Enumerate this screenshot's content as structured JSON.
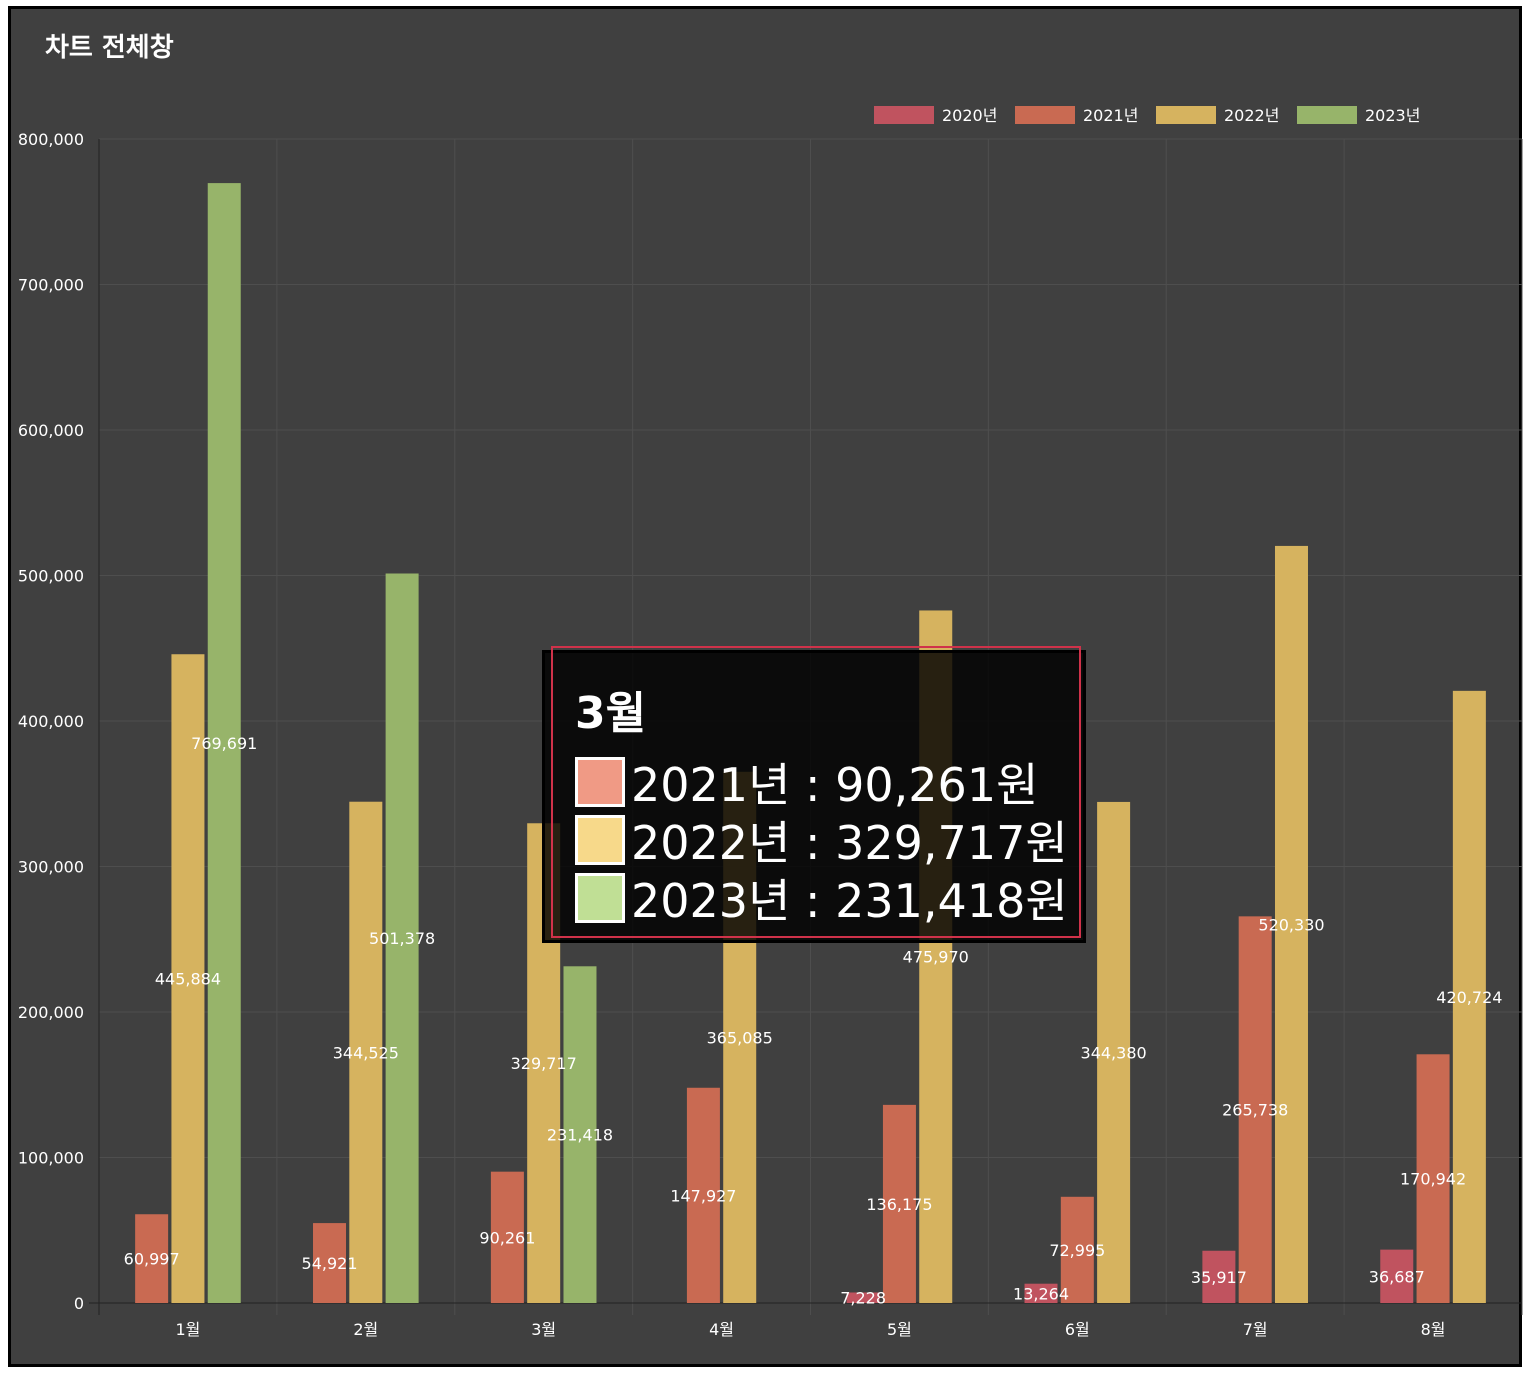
{
  "window": {
    "title": "차트 전체창"
  },
  "colors": {
    "background": "#404040",
    "grid": "#4e4e4e",
    "text": "#ffffff",
    "series": [
      "#c0535f",
      "#c96a52",
      "#d6b35f",
      "#97b46a"
    ]
  },
  "chart_data": {
    "type": "bar",
    "categories": [
      "1월",
      "2월",
      "3월",
      "4월",
      "5월",
      "6월",
      "7월",
      "8월"
    ],
    "series": [
      {
        "name": "2020년",
        "values": [
          null,
          null,
          null,
          null,
          7228,
          13264,
          35917,
          36687
        ]
      },
      {
        "name": "2021년",
        "values": [
          60997,
          54921,
          90261,
          147927,
          136175,
          72995,
          265738,
          170942
        ]
      },
      {
        "name": "2022년",
        "values": [
          445884,
          344525,
          329717,
          365085,
          475970,
          344380,
          520330,
          420724
        ]
      },
      {
        "name": "2023년",
        "values": [
          769691,
          501378,
          231418,
          null,
          null,
          null,
          null,
          null
        ]
      }
    ],
    "ylim": [
      0,
      800000
    ],
    "yticks": [
      "0",
      "100,000",
      "200,000",
      "300,000",
      "400,000",
      "500,000",
      "600,000",
      "700,000",
      "800,000"
    ],
    "grid": true,
    "legend_position": "top-right"
  },
  "tooltip": {
    "title": "3월",
    "rows": [
      {
        "text": "2021년 : 90,261원",
        "color": "#f09a85"
      },
      {
        "text": "2022년 : 329,717원",
        "color": "#f7d98a"
      },
      {
        "text": "2023년 : 231,418원",
        "color": "#c0df95"
      }
    ]
  }
}
